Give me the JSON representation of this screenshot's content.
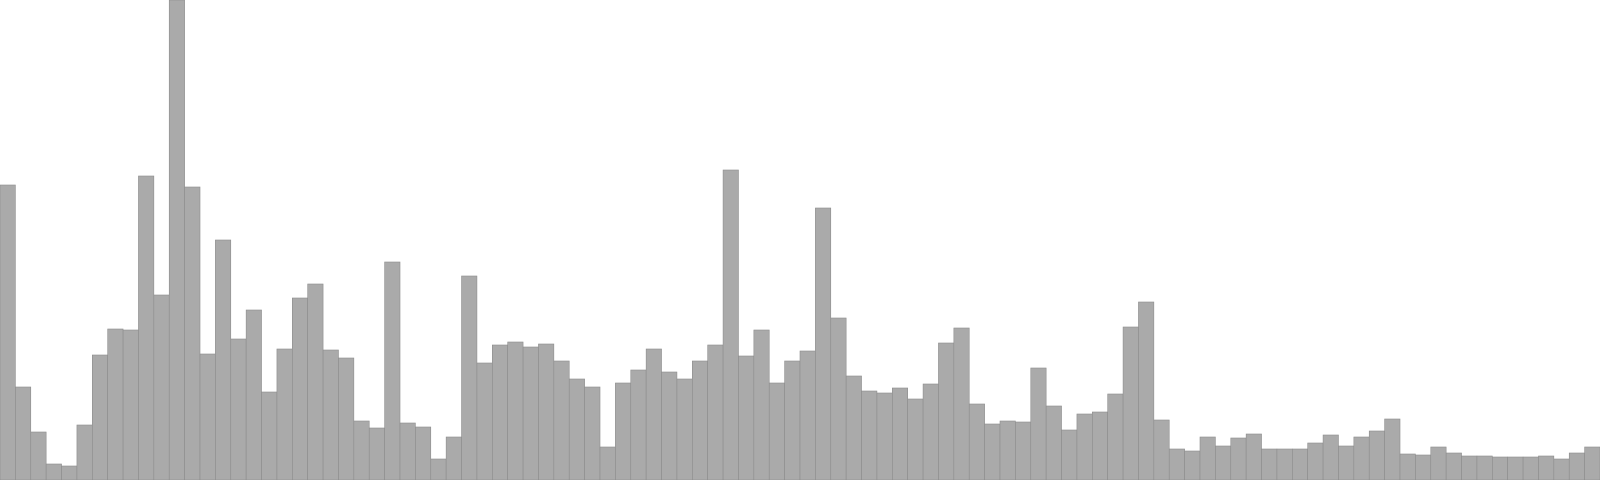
{
  "chart_data": {
    "type": "bar",
    "title": "",
    "xlabel": "",
    "ylabel": "",
    "ylim": [
      0,
      480
    ],
    "grid": false,
    "legend": "none",
    "bar_color": "#aaaaaa",
    "bar_edge_color": "#8c8c8c",
    "values": [
      295,
      93,
      48,
      16,
      14,
      55,
      125,
      151,
      150,
      304,
      185,
      480,
      293,
      126,
      240,
      141,
      170,
      88,
      131,
      182,
      196,
      130,
      122,
      59,
      52,
      218,
      57,
      53,
      21,
      43,
      204,
      117,
      135,
      138,
      133,
      136,
      119,
      101,
      93,
      33,
      97,
      110,
      131,
      108,
      101,
      119,
      135,
      310,
      124,
      150,
      97,
      119,
      129,
      272,
      162,
      104,
      89,
      87,
      92,
      81,
      96,
      137,
      152,
      76,
      56,
      59,
      58,
      112,
      74,
      50,
      66,
      68,
      86,
      153,
      178,
      60,
      31,
      29,
      43,
      34,
      42,
      46,
      31,
      31,
      31,
      37,
      45,
      34,
      43,
      49,
      61,
      26,
      25,
      33,
      27,
      24,
      24,
      23,
      23,
      23,
      24,
      21,
      27,
      33
    ]
  }
}
